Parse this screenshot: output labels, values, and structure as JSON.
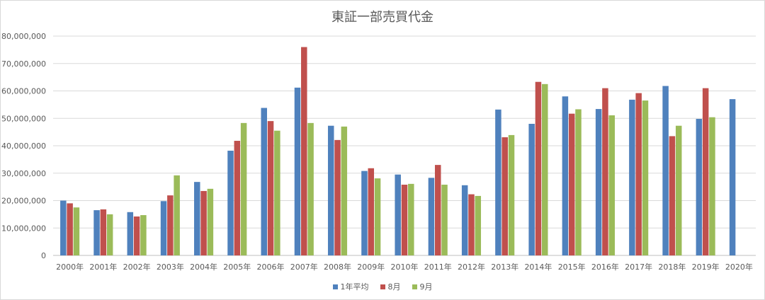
{
  "chart_data": {
    "type": "bar",
    "title": "東証一部売買代金",
    "categories": [
      "2000年",
      "2001年",
      "2002年",
      "2003年",
      "2004年",
      "2005年",
      "2006年",
      "2007年",
      "2008年",
      "2009年",
      "2010年",
      "2011年",
      "2012年",
      "2013年",
      "2014年",
      "2015年",
      "2016年",
      "2017年",
      "2018年",
      "2019年",
      "2020年"
    ],
    "series": [
      {
        "name": "1年平均",
        "color": "#4f81bd",
        "values": [
          20000000,
          16500000,
          15800000,
          19800000,
          26800000,
          38200000,
          53800000,
          61200000,
          47300000,
          30800000,
          29500000,
          28300000,
          25600000,
          53200000,
          48000000,
          58000000,
          53400000,
          56800000,
          61800000,
          49800000,
          57000000
        ]
      },
      {
        "name": "8月",
        "color": "#c0504d",
        "values": [
          19000000,
          16800000,
          14200000,
          21900000,
          23500000,
          41800000,
          49000000,
          76000000,
          42100000,
          31800000,
          25800000,
          33000000,
          22300000,
          43100000,
          63300000,
          51700000,
          61000000,
          59200000,
          43500000,
          61000000,
          null
        ]
      },
      {
        "name": "9月",
        "color": "#9bbb59",
        "values": [
          17500000,
          15000000,
          14700000,
          29200000,
          24300000,
          48300000,
          45500000,
          48300000,
          47000000,
          28100000,
          26100000,
          25800000,
          21700000,
          43900000,
          62500000,
          53300000,
          51100000,
          56500000,
          47300000,
          50400000,
          null
        ]
      }
    ],
    "ylim": [
      0,
      80000000
    ],
    "yticks": [
      "0",
      "10,000,000",
      "20,000,000",
      "30,000,000",
      "40,000,000",
      "50,000,000",
      "60,000,000",
      "70,000,000",
      "80,000,000"
    ],
    "grid": true,
    "legend_position": "bottom"
  }
}
